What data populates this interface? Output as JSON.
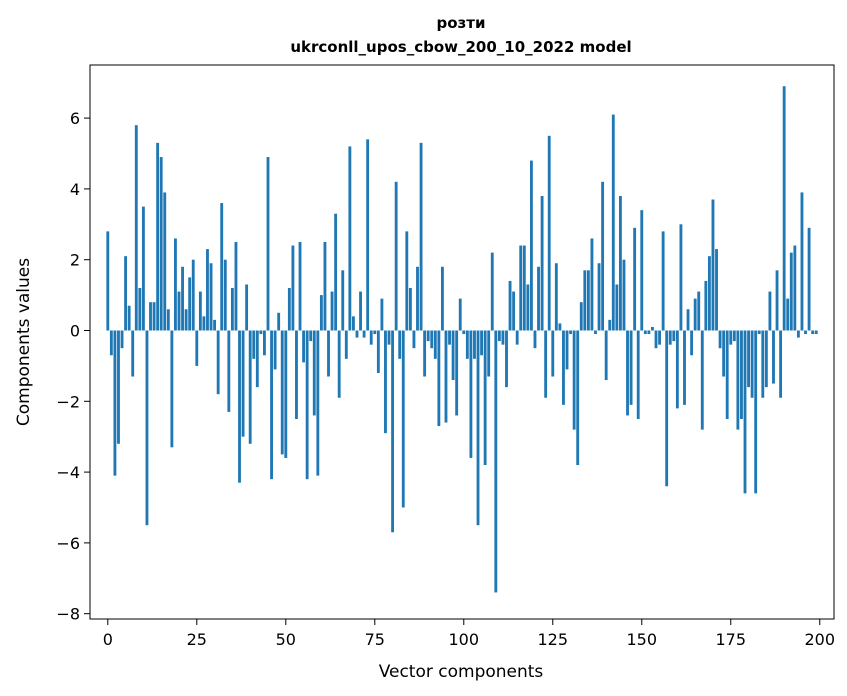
{
  "chart_data": {
    "type": "bar",
    "title": "розти",
    "subtitle": "ukrconll_upos_cbow_200_10_2022 model",
    "xlabel": "Vector components",
    "ylabel": "Components values",
    "xlim": [
      -5,
      204
    ],
    "ylim": [
      -8.15,
      7.5
    ],
    "xticks": [
      0,
      25,
      50,
      75,
      100,
      125,
      150,
      175,
      200
    ],
    "yticks": [
      -8,
      -6,
      -4,
      -2,
      0,
      2,
      4,
      6
    ],
    "grid": false,
    "bar_color": "#1f77b4",
    "x": [
      0,
      1,
      2,
      3,
      4,
      5,
      6,
      7,
      8,
      9,
      10,
      11,
      12,
      13,
      14,
      15,
      16,
      17,
      18,
      19,
      20,
      21,
      22,
      23,
      24,
      25,
      26,
      27,
      28,
      29,
      30,
      31,
      32,
      33,
      34,
      35,
      36,
      37,
      38,
      39,
      40,
      41,
      42,
      43,
      44,
      45,
      46,
      47,
      48,
      49,
      50,
      51,
      52,
      53,
      54,
      55,
      56,
      57,
      58,
      59,
      60,
      61,
      62,
      63,
      64,
      65,
      66,
      67,
      68,
      69,
      70,
      71,
      72,
      73,
      74,
      75,
      76,
      77,
      78,
      79,
      80,
      81,
      82,
      83,
      84,
      85,
      86,
      87,
      88,
      89,
      90,
      91,
      92,
      93,
      94,
      95,
      96,
      97,
      98,
      99,
      100,
      101,
      102,
      103,
      104,
      105,
      106,
      107,
      108,
      109,
      110,
      111,
      112,
      113,
      114,
      115,
      116,
      117,
      118,
      119,
      120,
      121,
      122,
      123,
      124,
      125,
      126,
      127,
      128,
      129,
      130,
      131,
      132,
      133,
      134,
      135,
      136,
      137,
      138,
      139,
      140,
      141,
      142,
      143,
      144,
      145,
      146,
      147,
      148,
      149,
      150,
      151,
      152,
      153,
      154,
      155,
      156,
      157,
      158,
      159,
      160,
      161,
      162,
      163,
      164,
      165,
      166,
      167,
      168,
      169,
      170,
      171,
      172,
      173,
      174,
      175,
      176,
      177,
      178,
      179,
      180,
      181,
      182,
      183,
      184,
      185,
      186,
      187,
      188,
      189,
      190,
      191,
      192,
      193,
      194,
      195,
      196,
      197,
      198,
      199
    ],
    "values": [
      2.8,
      -0.7,
      -4.1,
      -3.2,
      -0.5,
      2.1,
      0.7,
      -1.3,
      5.8,
      1.2,
      3.5,
      -5.5,
      0.8,
      0.8,
      5.3,
      4.9,
      3.9,
      0.6,
      -3.3,
      2.6,
      1.1,
      1.8,
      0.6,
      1.5,
      2.0,
      -1.0,
      1.1,
      0.4,
      2.3,
      1.9,
      0.3,
      -1.8,
      3.6,
      2.0,
      -2.3,
      1.2,
      2.5,
      -4.3,
      -3.0,
      1.3,
      -3.2,
      -0.8,
      -1.6,
      -0.1,
      -0.7,
      4.9,
      -4.2,
      -1.1,
      0.5,
      -3.5,
      -3.6,
      1.2,
      2.4,
      -2.5,
      2.5,
      -0.9,
      -4.2,
      -0.3,
      -2.4,
      -4.1,
      1.0,
      2.5,
      -1.3,
      1.1,
      3.3,
      -1.9,
      1.7,
      -0.8,
      5.2,
      0.4,
      -0.2,
      1.1,
      -0.2,
      5.4,
      -0.4,
      -0.1,
      -1.2,
      0.9,
      -2.9,
      -0.4,
      -5.7,
      4.2,
      -0.8,
      -5.0,
      2.8,
      1.2,
      -0.5,
      1.8,
      5.3,
      -1.3,
      -0.3,
      -0.5,
      -0.8,
      -2.7,
      1.8,
      -2.6,
      -0.4,
      -1.4,
      -2.4,
      0.9,
      -0.1,
      -0.8,
      -3.6,
      -0.8,
      -5.5,
      -0.7,
      -3.8,
      -1.3,
      2.2,
      -7.4,
      -0.3,
      -0.4,
      -1.6,
      1.4,
      1.1,
      -0.4,
      2.4,
      2.4,
      1.3,
      4.8,
      -0.5,
      1.8,
      3.8,
      -1.9,
      5.5,
      -1.3,
      1.9,
      0.2,
      -2.1,
      -1.1,
      -0.1,
      -2.8,
      -3.8,
      0.8,
      1.7,
      1.7,
      2.6,
      -0.1,
      1.9,
      4.2,
      -1.4,
      0.3,
      6.1,
      1.3,
      3.8,
      2.0,
      -2.4,
      -2.1,
      2.9,
      -2.5,
      3.4,
      -0.1,
      -0.1,
      0.1,
      -0.5,
      -0.4,
      2.8,
      -4.4,
      -0.4,
      -0.3,
      -2.2,
      3.0,
      -2.1,
      0.6,
      -0.7,
      0.9,
      1.1,
      -2.8,
      1.4,
      2.1,
      3.7,
      2.3,
      -0.5,
      -1.3,
      -2.5,
      -0.4,
      -0.3,
      -2.8,
      -2.5,
      -4.6,
      -1.6,
      -1.9,
      -4.6,
      -0.1,
      -1.9,
      -1.6,
      1.1,
      -1.5,
      1.7,
      -1.9,
      6.9,
      0.9,
      2.2,
      2.4,
      -0.2,
      3.9,
      -0.1,
      2.9,
      -0.1,
      -0.1
    ]
  }
}
